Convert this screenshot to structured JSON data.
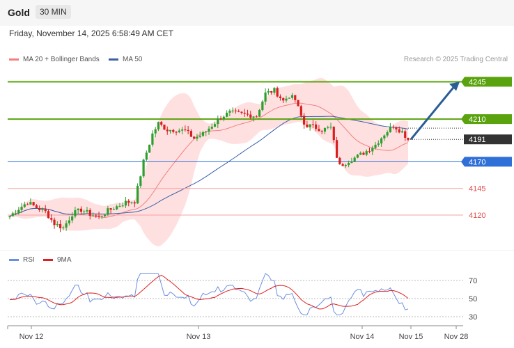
{
  "header": {
    "instrument": "Gold",
    "timeframe": "30 MIN",
    "datetime": "Friday, November 14, 2025 6:58:49 AM CET"
  },
  "legend": {
    "ma20_label": "MA 20 + Bollinger Bands",
    "ma50_label": "MA 50",
    "credit": "Research © 2025 Trading Central",
    "rsi_label": "RSI",
    "rsi_ma_label": "9MA"
  },
  "colors": {
    "resistance": "#5aa30e",
    "support": "#2f6fd8",
    "weak_level": "#f4a1a1",
    "weak_level_text": "#e05050",
    "current_price": "#333333",
    "candle_up": "#2e9e2e",
    "candle_down": "#d81e1e",
    "bollinger_fill": "#ffd6d6",
    "ma20": "#f08080",
    "ma50": "#3a5fa8",
    "arrow": "#2a5d96",
    "rsi": "#6b8fe0",
    "rsi_ma": "#e02020"
  },
  "chart_data": [
    {
      "type": "candlestick",
      "title": "Gold",
      "timeframe": "30 MIN",
      "ylim": [
        4095,
        4255
      ],
      "x_tick_labels": [
        "Nov 12",
        "Nov 13",
        "Nov 14",
        "Nov 15",
        "Nov 28"
      ],
      "series": [
        {
          "name": "MA 20 + Bollinger Bands",
          "kind": "moving_average_with_bands"
        },
        {
          "name": "MA 50",
          "kind": "moving_average"
        }
      ],
      "levels": [
        {
          "label": "4245",
          "value": 4245,
          "style": "resistance"
        },
        {
          "label": "4210",
          "value": 4210,
          "style": "resistance"
        },
        {
          "label": "4191",
          "value": 4191,
          "style": "current"
        },
        {
          "label": "4170",
          "value": 4170,
          "style": "support"
        },
        {
          "label": "4145",
          "value": 4145,
          "style": "weak"
        },
        {
          "label": "4120",
          "value": 4120,
          "style": "weak"
        }
      ],
      "forecast_arrow": {
        "from": 4191,
        "to": 4245
      }
    },
    {
      "type": "line",
      "series": [
        {
          "name": "RSI"
        },
        {
          "name": "9MA"
        }
      ],
      "ylim": [
        20,
        80
      ],
      "y_ticks": [
        "70",
        "50",
        "30"
      ]
    }
  ]
}
